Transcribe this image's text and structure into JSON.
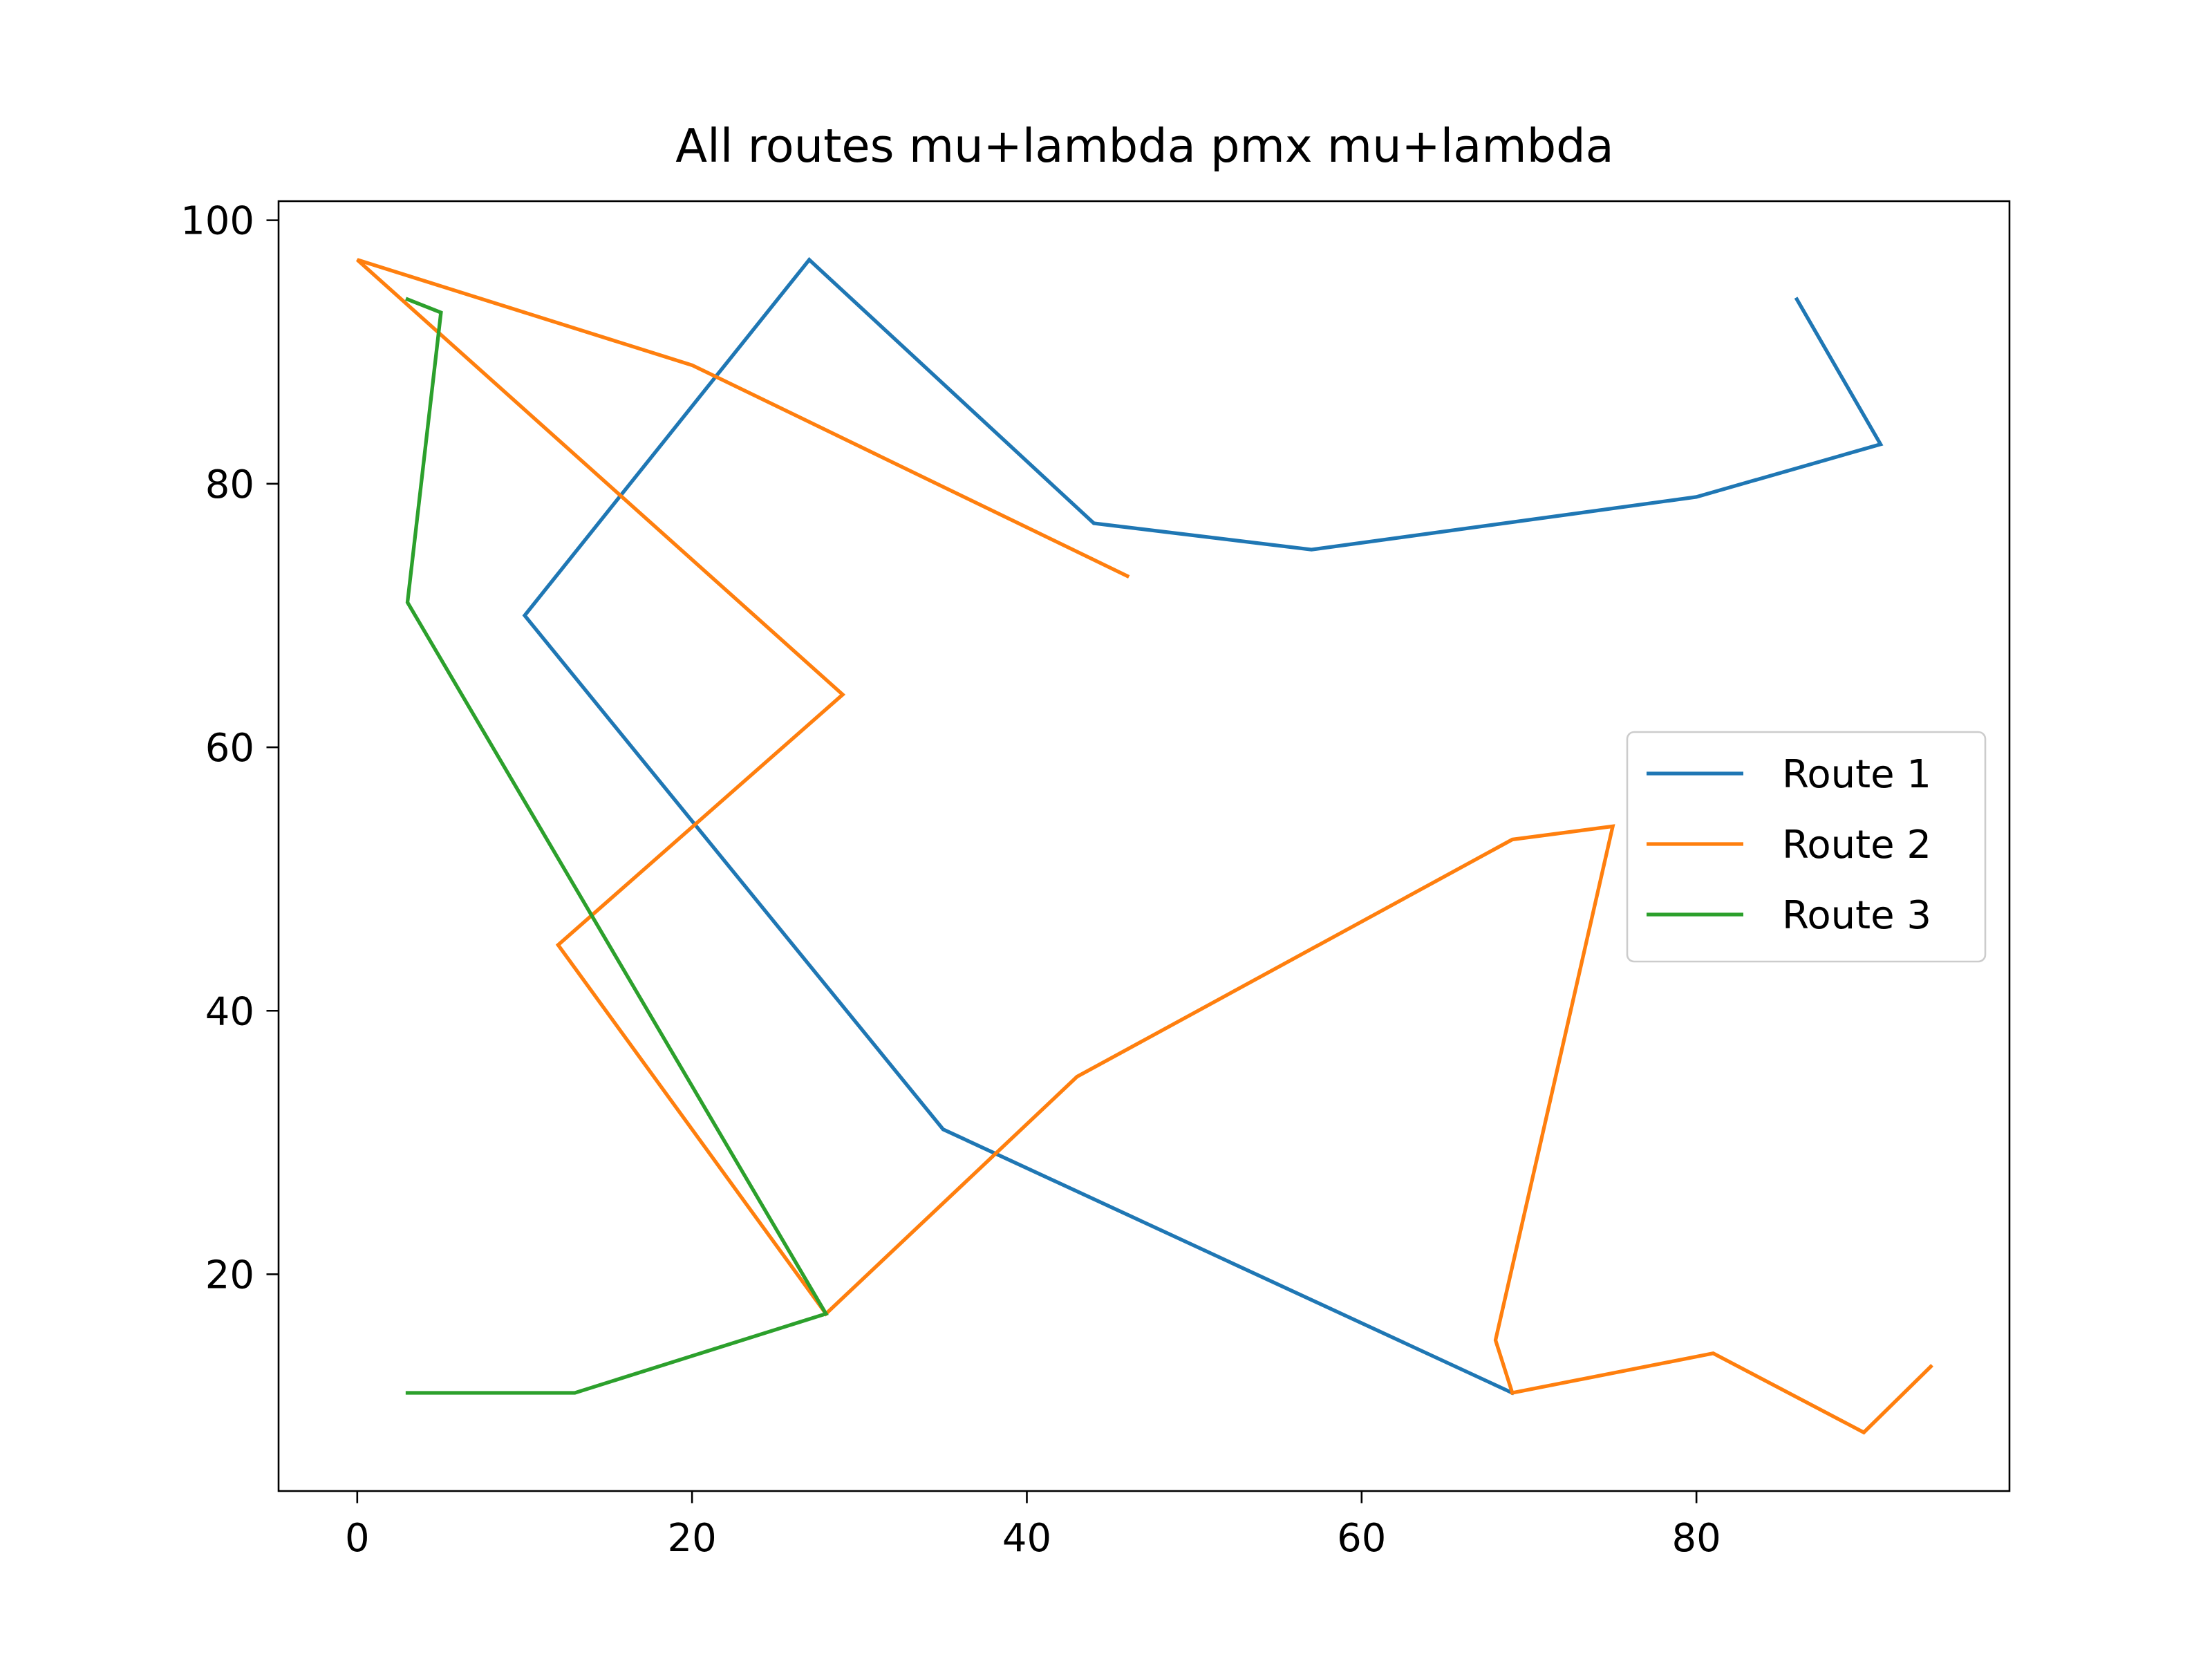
{
  "chart_data": {
    "type": "line",
    "title": "All routes mu+lambda pmx mu+lambda",
    "xlabel": "",
    "ylabel": "",
    "xlim": [
      -4.7,
      98.7
    ],
    "ylim": [
      3.55,
      101.45
    ],
    "x_ticks": [
      0,
      20,
      40,
      60,
      80
    ],
    "y_ticks": [
      20,
      40,
      60,
      80,
      100
    ],
    "x_tick_labels": [
      "0",
      "20",
      "40",
      "60",
      "80"
    ],
    "y_tick_labels": [
      "20",
      "40",
      "60",
      "80",
      "100"
    ],
    "grid": false,
    "legend_position": "center-right",
    "series": [
      {
        "name": "Route 1",
        "color": "#1f77b4",
        "points": [
          [
            86,
            94
          ],
          [
            91,
            83
          ],
          [
            80,
            79
          ],
          [
            57,
            75
          ],
          [
            44,
            77
          ],
          [
            27,
            97
          ],
          [
            10,
            70
          ],
          [
            35,
            31
          ],
          [
            69,
            11
          ]
        ]
      },
      {
        "name": "Route 2",
        "color": "#ff7f0e",
        "points": [
          [
            94,
            13
          ],
          [
            90,
            8
          ],
          [
            81,
            14
          ],
          [
            69,
            11
          ],
          [
            68,
            15
          ],
          [
            75,
            54
          ],
          [
            69,
            53
          ],
          [
            43,
            35
          ],
          [
            28,
            17
          ],
          [
            12,
            45
          ],
          [
            29,
            64
          ],
          [
            0,
            97
          ],
          [
            20,
            89
          ],
          [
            46,
            73
          ]
        ]
      },
      {
        "name": "Route 3",
        "color": "#2ca02c",
        "points": [
          [
            3,
            11
          ],
          [
            13,
            11
          ],
          [
            28,
            17
          ],
          [
            3,
            71
          ],
          [
            5,
            93
          ],
          [
            3,
            94
          ]
        ]
      }
    ]
  }
}
